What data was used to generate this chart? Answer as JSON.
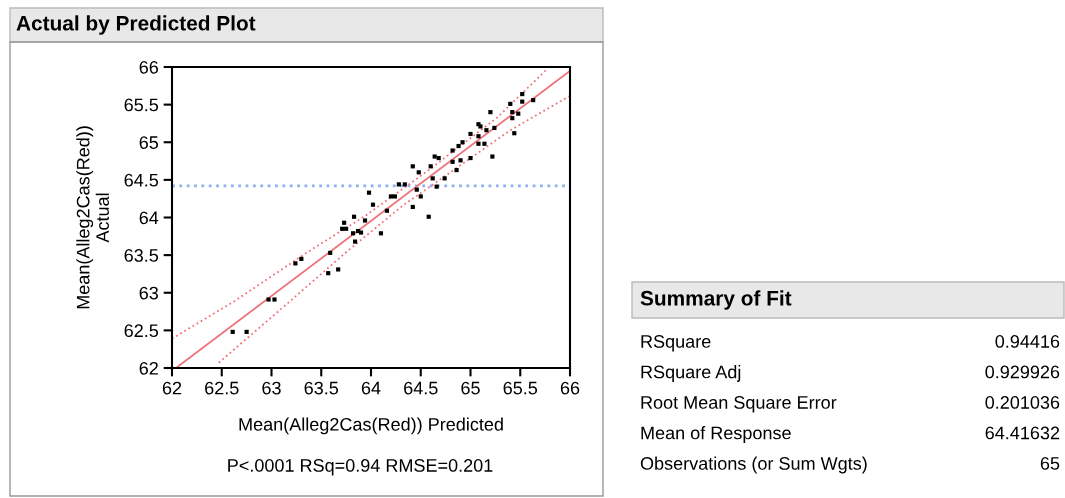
{
  "chart_data": [
    {
      "type": "scatter",
      "title": "Actual by Predicted Plot",
      "xlabel": "Mean(Alleg2Cas(Red)) Predicted",
      "ylabel": "Mean(Alleg2Cas(Red))\nActual",
      "annotations": [
        "P<.0001 RSq=0.94 RMSE=0.201"
      ],
      "xlim": [
        62,
        66
      ],
      "ylim": [
        62,
        66
      ],
      "xticks": [
        62,
        62.5,
        63,
        63.5,
        64,
        64.5,
        65,
        65.5,
        66
      ],
      "yticks": [
        62,
        62.5,
        63,
        63.5,
        64,
        64.5,
        65,
        65.5,
        66
      ],
      "grid": false,
      "ref_lines": [
        {
          "axis": "y",
          "value": 64.42,
          "color": "#8fb0f0",
          "line_style": "dotted"
        }
      ],
      "series": [
        {
          "type": "scatter",
          "color": "#000000",
          "marker": "square",
          "x": [
            62.61,
            62.75,
            62.97,
            63.03,
            63.24,
            63.3,
            63.59,
            63.57,
            63.67,
            63.73,
            63.71,
            63.75,
            63.83,
            63.82,
            63.87,
            63.9,
            63.84,
            63.94,
            63.98,
            64.02,
            64.1,
            64.16,
            64.2,
            64.24,
            64.28,
            64.34,
            64.42,
            64.42,
            64.46,
            64.48,
            64.5,
            64.58,
            64.6,
            64.62,
            64.64,
            64.68,
            64.66,
            64.74,
            64.82,
            64.82,
            64.86,
            64.88,
            64.9,
            64.92,
            65.0,
            65.0,
            65.08,
            65.1,
            65.08,
            65.08,
            65.14,
            65.16,
            65.2,
            65.22,
            65.24,
            65.4,
            65.42,
            65.42,
            65.44,
            65.48,
            65.52,
            65.52,
            65.63
          ],
          "values": [
            62.48,
            62.48,
            62.91,
            62.91,
            63.39,
            63.45,
            63.53,
            63.26,
            63.31,
            63.93,
            63.85,
            63.85,
            64.01,
            63.79,
            63.82,
            63.8,
            63.68,
            63.96,
            64.33,
            64.17,
            63.79,
            64.09,
            64.28,
            64.28,
            64.44,
            64.44,
            64.68,
            64.14,
            64.37,
            64.6,
            64.28,
            64.01,
            64.68,
            64.52,
            64.81,
            64.79,
            64.41,
            64.52,
            64.89,
            64.74,
            64.63,
            64.95,
            64.76,
            65.0,
            64.79,
            65.11,
            65.24,
            65.21,
            65.08,
            64.98,
            64.98,
            65.16,
            65.4,
            64.81,
            65.19,
            65.51,
            65.4,
            65.32,
            65.12,
            65.38,
            65.64,
            65.54,
            65.56
          ]
        },
        {
          "type": "line",
          "color": "#f0737a",
          "line_style": "solid",
          "x": [
            62.04,
            66
          ],
          "values": [
            62,
            65.95
          ]
        },
        {
          "type": "line",
          "color": "#f0737a",
          "line_style": "dotted",
          "x": [
            62,
            62.63,
            63.35,
            63.94,
            64.57,
            65.27,
            65.76
          ],
          "values": [
            62.39,
            62.89,
            63.53,
            64.02,
            64.62,
            65.33,
            65.96
          ]
        },
        {
          "type": "line",
          "color": "#f0737a",
          "line_style": "dotted",
          "x": [
            62.47,
            63.11,
            63.76,
            64.32,
            64.83,
            65.4,
            65.99
          ],
          "values": [
            62.07,
            62.8,
            63.55,
            64.16,
            64.63,
            65.16,
            65.61
          ]
        }
      ]
    },
    {
      "type": "other",
      "title": "Summary of Fit",
      "annotations": [
        "RSquare",
        "0.94416",
        "RSquare Adj",
        "0.929926",
        "Root Mean Square Error",
        "0.201036",
        "Mean of Response",
        "64.41632",
        "Observations (or Sum Wgts)",
        "65"
      ]
    }
  ]
}
